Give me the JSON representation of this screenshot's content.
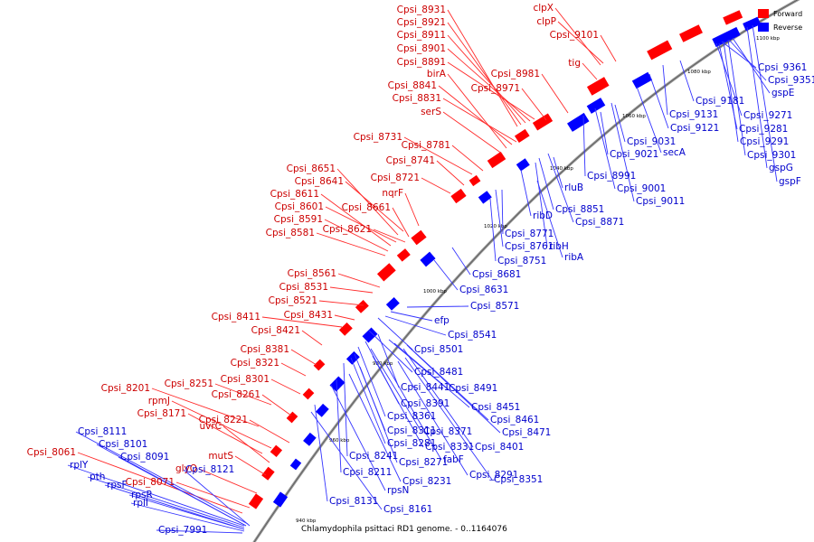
{
  "caption": "Chlamydophila psittaci RD1 genome. - 0..1164076",
  "legend": {
    "forward": "Forward",
    "reverse": "Reverse"
  },
  "colors": {
    "forward": "#ff0000",
    "reverse": "#0000ff",
    "backbone": "#888888"
  },
  "ticks": [
    "940 kbp",
    "960 kbp",
    "980 kbp",
    "1000 kbp",
    "1020 kbp",
    "1040 kbp",
    "1060 kbp",
    "1080 kbp",
    "1100 kbp"
  ],
  "forward_labels": [
    "Cpsi_8931",
    "Cpsi_8921",
    "Cpsi_8911",
    "Cpsi_8901",
    "Cpsi_8891",
    "birA",
    "Cpsi_8841",
    "Cpsi_8831",
    "serS",
    "clpX",
    "clpP",
    "Cpsi_9101",
    "tig",
    "Cpsi_8981",
    "Cpsi_8971",
    "Cpsi_8731",
    "Cpsi_8781",
    "Cpsi_8741",
    "Cpsi_8651",
    "Cpsi_8641",
    "Cpsi_8721",
    "Cpsi_8611",
    "nqrF",
    "Cpsi_8601",
    "Cpsi_8661",
    "Cpsi_8591",
    "Cpsi_8621",
    "Cpsi_8581",
    "Cpsi_8561",
    "Cpsi_8531",
    "Cpsi_8521",
    "Cpsi_8411",
    "Cpsi_8431",
    "Cpsi_8421",
    "Cpsi_8381",
    "Cpsi_8321",
    "Cpsi_8301",
    "Cpsi_8201",
    "Cpsi_8251",
    "rpmJ",
    "Cpsi_8261",
    "Cpsi_8171",
    "uvrC",
    "Cpsi_8221",
    "Cpsi_8061",
    "mutS",
    "glyQ",
    "Cpsi_8071"
  ],
  "reverse_labels": [
    "Cpsi_9361",
    "Cpsi_9351",
    "gspE",
    "Cpsi_9181",
    "Cpsi_9271",
    "Cpsi_9131",
    "Cpsi_9281",
    "Cpsi_9121",
    "Cpsi_9291",
    "Cpsi_9031",
    "Cpsi_9301",
    "Cpsi_9021",
    "secA",
    "gspG",
    "gspF",
    "Cpsi_8991",
    "Cpsi_9001",
    "rluB",
    "Cpsi_9011",
    "Cpsi_8851",
    "ribD",
    "Cpsi_8871",
    "Cpsi_8771",
    "Cpsi_8761",
    "ribH",
    "Cpsi_8751",
    "ribA",
    "Cpsi_8681",
    "Cpsi_8631",
    "Cpsi_8571",
    "efp",
    "Cpsi_8541",
    "Cpsi_8501",
    "Cpsi_8481",
    "Cpsi_8441",
    "Cpsi_8491",
    "Cpsi_8391",
    "Cpsi_8451",
    "Cpsi_8361",
    "Cpsi_8461",
    "Cpsi_8371",
    "Cpsi_8311",
    "Cpsi_8471",
    "Cpsi_8281",
    "Cpsi_8331",
    "Cpsi_8401",
    "Cpsi_8241",
    "Cpsi_8271",
    "fabF",
    "Cpsi_8111",
    "Cpsi_8291",
    "Cpsi_8101",
    "Cpsi_8351",
    "Cpsi_8091",
    "Cpsi_8121",
    "Cpsi_8211",
    "Cpsi_8231",
    "rplY",
    "pth",
    "rpsF",
    "rpsR",
    "rpsN",
    "Cpsi_8131",
    "rplI",
    "Cpsi_8161",
    "Cpsi_7991"
  ]
}
